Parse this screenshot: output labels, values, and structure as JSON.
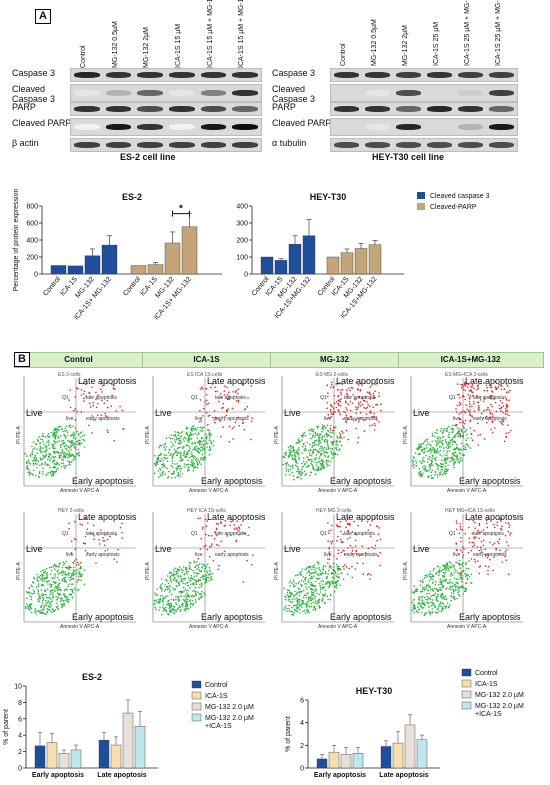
{
  "panel_a": {
    "label": "A",
    "es2": {
      "caption": "ES-2 cell line",
      "lanes": [
        "Control",
        "MG-132 0.5µM",
        "MG-132 2µM",
        "ICA-1S 15 µM",
        "ICA-1S 15 µM + MG-132 0.5µM",
        "ICA-1S 15 µM + MG-132 2µM"
      ],
      "rows": [
        "Caspase 3",
        "Cleaved Caspase 3",
        "PARP",
        "Cleaved PARP",
        "β actin"
      ]
    },
    "hey": {
      "caption": "HEY-T30 cell line",
      "lanes": [
        "Control",
        "MG-132 0.5µM",
        "MG-132 2µM",
        "ICA-1S 25 µM",
        "ICA-1S 25 µM + MG-132 0.5µM",
        "ICA-1S 25 µM + MG-132 2µM"
      ],
      "rows": [
        "Caspase 3",
        "Cleaved Caspase 3",
        "PARP",
        "Cleaved PARP",
        "α tubulin"
      ]
    },
    "legend": {
      "cleaved_caspase": "Cleaved caspase 3",
      "cleaved_parp": "Cleaved-PARP"
    },
    "colors": {
      "caspase": "#1f4e9c",
      "parp": "#c4a57a"
    },
    "significance": "*"
  },
  "panel_b": {
    "label": "B",
    "headers": [
      "Control",
      "ICA-1S",
      "MG-132",
      "ICA-1S+MG-132"
    ],
    "quadrants": {
      "ll": "Live",
      "ul_live": "Live",
      "ur": "Late apoptosis",
      "lr": "Early apoptosis"
    },
    "quad_small": {
      "q1": "Q1",
      "live": "live",
      "late": "late apoptosis",
      "early": "early apoptosis"
    },
    "axes": {
      "x": "Annexin V APC-A",
      "y": "PI PE-A"
    },
    "titles_row1": [
      "ES 2-cells",
      "ES ICA 1S-cells",
      "ES MG 2-cells",
      "ES MG+ICA 2-cells"
    ],
    "titles_row2": [
      "HEY 2-cells",
      "HEY ICA 1S-cells",
      "HEY MG 2-cells",
      "HEY MG+ICA 1S-cells"
    ],
    "legend": [
      "Control",
      "ICA-1S",
      "MG-132 2.0 µM",
      "MG-132 2.0 µM +ICA-1S"
    ],
    "colors": [
      "#1f4e9c",
      "#f3dfb0",
      "#e8e0d8",
      "#bfe6ec"
    ]
  },
  "chart_data": [
    {
      "type": "bar",
      "title": "ES-2",
      "ylabel": "Percentage of protein expression",
      "ylim": [
        0,
        800
      ],
      "yticks": [
        0,
        200,
        400,
        600,
        800
      ],
      "groups": [
        {
          "series": "Cleaved caspase 3",
          "categories": [
            "Control",
            "ICA-1S",
            "MG-132",
            "ICA-1S+ MG-132"
          ],
          "values": [
            100,
            95,
            215,
            340
          ],
          "errors": [
            0,
            0,
            80,
            110
          ]
        },
        {
          "series": "Cleaved-PARP",
          "categories": [
            "Control",
            "ICA-1S",
            "MG-132",
            "ICA-1S+ MG-132"
          ],
          "values": [
            100,
            110,
            365,
            555
          ],
          "errors": [
            0,
            25,
            130,
            160
          ]
        }
      ]
    },
    {
      "type": "bar",
      "title": "HEY-T30",
      "ylabel": "",
      "ylim": [
        0,
        400
      ],
      "yticks": [
        0,
        100,
        200,
        300,
        400
      ],
      "groups": [
        {
          "series": "Cleaved caspase 3",
          "categories": [
            "Control",
            "ICA-1S",
            "MG-132",
            "ICA-1S+MG-132"
          ],
          "values": [
            100,
            80,
            175,
            225
          ],
          "errors": [
            0,
            10,
            50,
            95
          ]
        },
        {
          "series": "Cleaved-PARP",
          "categories": [
            "Control",
            "ICA-1S",
            "MG-132",
            "ICA-1S+MG-132"
          ],
          "values": [
            100,
            125,
            150,
            172
          ],
          "errors": [
            0,
            22,
            30,
            25
          ]
        }
      ]
    },
    {
      "type": "bar",
      "title": "ES-2",
      "ylabel": "% of parent",
      "ylim": [
        0,
        10
      ],
      "yticks": [
        0,
        2,
        4,
        6,
        8,
        10
      ],
      "categories": [
        "Early apoptosis",
        "Late apoptosis"
      ],
      "series": [
        {
          "name": "Control",
          "values": [
            2.7,
            3.4
          ],
          "errors": [
            1.6,
            0.9
          ]
        },
        {
          "name": "ICA-1S",
          "values": [
            3.1,
            2.8
          ],
          "errors": [
            1.1,
            1.0
          ]
        },
        {
          "name": "MG-132 2.0 µM",
          "values": [
            1.8,
            6.7
          ],
          "errors": [
            0.4,
            1.6
          ]
        },
        {
          "name": "MG-132 2.0 µM +ICA-1S",
          "values": [
            2.2,
            5.1
          ],
          "errors": [
            0.6,
            1.8
          ]
        }
      ]
    },
    {
      "type": "bar",
      "title": "HEY-T30",
      "ylabel": "% of parent",
      "ylim": [
        0,
        6
      ],
      "yticks": [
        0,
        2,
        4,
        6
      ],
      "categories": [
        "Early apoptosis",
        "Late apoptosis"
      ],
      "series": [
        {
          "name": "Control",
          "values": [
            0.8,
            1.9
          ],
          "errors": [
            0.4,
            0.5
          ]
        },
        {
          "name": "ICA-1S",
          "values": [
            1.4,
            2.2
          ],
          "errors": [
            0.6,
            1.0
          ]
        },
        {
          "name": "MG-132 2.0 µM",
          "values": [
            1.2,
            3.8
          ],
          "errors": [
            0.6,
            0.9
          ]
        },
        {
          "name": "MG-132 2.0 µM +ICA-1S",
          "values": [
            1.3,
            2.5
          ],
          "errors": [
            0.5,
            0.4
          ]
        }
      ]
    }
  ]
}
